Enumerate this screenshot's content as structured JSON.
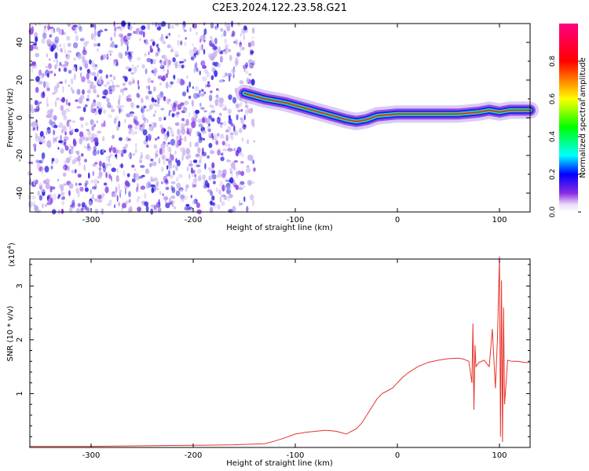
{
  "title": "C2E3.2024.122.23.58.G21",
  "colors": {
    "line": "#e8332b",
    "axis": "#000000",
    "spec_outer": "#c9b5ee",
    "spec_mid": "#8a3fe6",
    "spec_core": "#2b1fe0"
  },
  "chart_data": [
    {
      "type": "heatmap",
      "xlabel": "Height of straight line (km)",
      "ylabel": "Frequency (Hz)",
      "xlim": [
        -360,
        130
      ],
      "ylim": [
        -50,
        50
      ],
      "xticks": [
        -300,
        -200,
        -100,
        0,
        100
      ],
      "yticks": [
        -40,
        -20,
        0,
        20,
        40
      ],
      "colorbar": {
        "label": "Normalized spectral amplitude",
        "ticks": [
          0.0,
          0.2,
          0.4,
          0.6,
          0.8
        ],
        "tick_labels": [
          "0.0",
          "0.2",
          "0.4",
          "0.6",
          "0.8"
        ]
      },
      "noise_region_x": [
        -360,
        -140
      ],
      "signal_track": {
        "x": [
          -150,
          -130,
          -110,
          -90,
          -70,
          -50,
          -40,
          -30,
          -20,
          0,
          20,
          40,
          60,
          80,
          90,
          100,
          110,
          130
        ],
        "y": [
          13,
          10,
          8,
          5,
          2,
          -1,
          -2,
          -1,
          1,
          2,
          2,
          2,
          2,
          3,
          4,
          3,
          4,
          4
        ]
      }
    },
    {
      "type": "line",
      "xlabel": "Height of straight line (km)",
      "ylabel": "SNR (10 * v/v)",
      "y_multiplier": "(x10",
      "y_multiplier_exp": "4",
      "xlim": [
        -360,
        130
      ],
      "ylim": [
        0,
        3.5
      ],
      "xticks": [
        -300,
        -200,
        -100,
        0,
        100
      ],
      "yticks": [
        1,
        2,
        3
      ],
      "series": [
        {
          "x": [
            -360,
            -300,
            -250,
            -200,
            -160,
            -130,
            -120,
            -110,
            -100,
            -90,
            -80,
            -70,
            -60,
            -50,
            -45,
            -40,
            -35,
            -30,
            -25,
            -20,
            -15,
            -10,
            -5,
            0,
            5,
            10,
            20,
            30,
            40,
            50,
            60,
            65,
            70,
            73,
            74,
            75,
            76,
            77,
            80,
            85,
            90,
            93,
            96,
            98,
            100,
            101,
            102,
            103,
            104,
            105,
            108,
            112,
            118,
            125,
            130
          ],
          "y": [
            0.02,
            0.02,
            0.03,
            0.04,
            0.05,
            0.07,
            0.12,
            0.18,
            0.25,
            0.28,
            0.3,
            0.32,
            0.3,
            0.25,
            0.3,
            0.35,
            0.45,
            0.6,
            0.75,
            0.9,
            1.0,
            1.05,
            1.1,
            1.2,
            1.3,
            1.38,
            1.5,
            1.58,
            1.62,
            1.65,
            1.66,
            1.64,
            1.6,
            1.2,
            2.3,
            0.7,
            1.9,
            1.5,
            1.58,
            1.62,
            1.5,
            2.2,
            1.1,
            2.0,
            3.55,
            0.2,
            3.1,
            0.1,
            2.6,
            0.8,
            1.62,
            1.6,
            1.6,
            1.58,
            1.58
          ]
        }
      ]
    }
  ]
}
